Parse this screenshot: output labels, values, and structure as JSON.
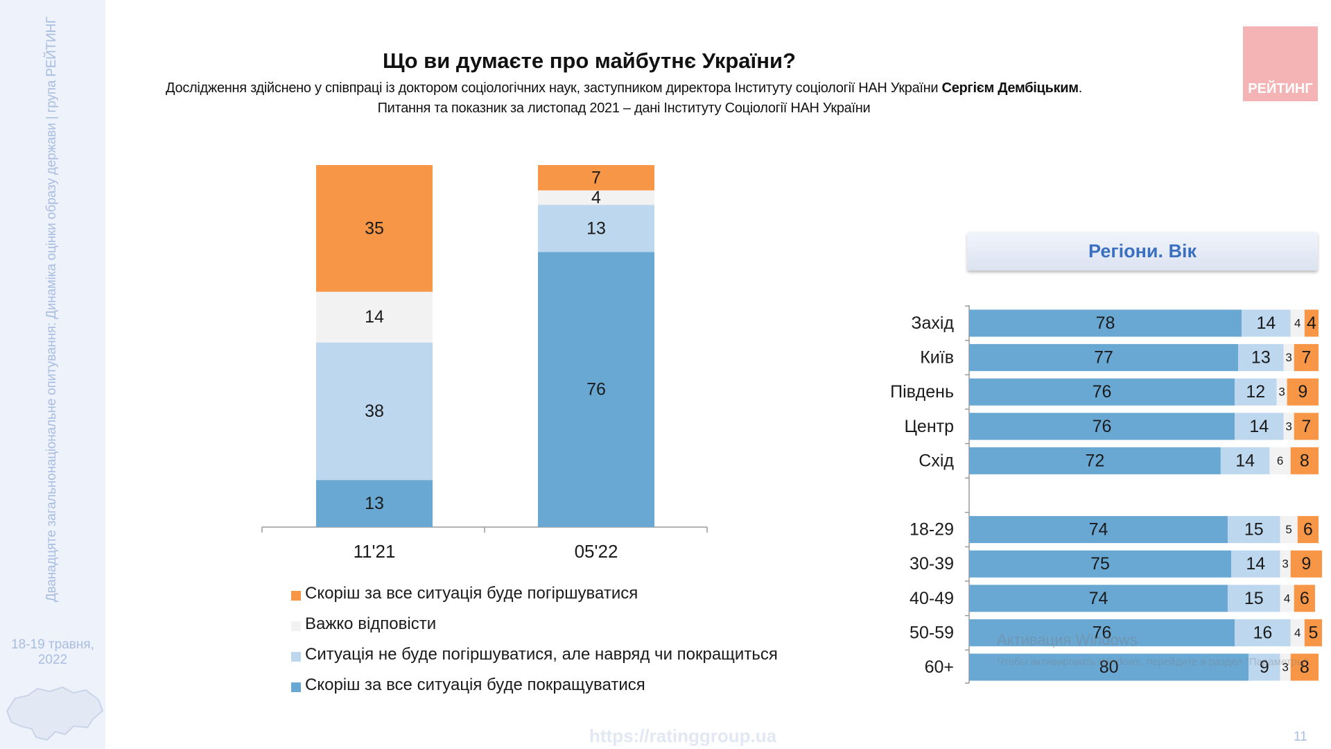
{
  "sidebar": {
    "vertical_text": "Дванадцяте загальнонаціональне опитування: Динаміка оцінки образу держави | група РЕЙТИНГ",
    "date_line1": "18-19 травня,",
    "date_line2": "2022"
  },
  "header": {
    "title": "Що ви думаєте про майбутнє України?",
    "subtitle_line1_prefix": "Дослідження здійснено у співпраці із доктором соціологічних наук, заступником директора Інституту соціології НАН України ",
    "subtitle_line1_bold": "Сергієм Дембіцьким",
    "subtitle_line1_suffix": ".",
    "subtitle_line2": "Питання та показник за листопад 2021 – дані Інституту Соціології НАН України",
    "logo_text": "РЕЙТИНГ"
  },
  "regions_header": "Регіони. Вік",
  "footer": {
    "url": "https://ratinggroup.ua",
    "page_number": "11",
    "watermark_line1": "Активация Windows",
    "watermark_line2": "Чтобы активировать Windows, перейдите в раздел \"Параметры\"."
  },
  "colors": {
    "worse": "#f79646",
    "hard": "#f2f2f2",
    "same": "#bdd7ee",
    "better": "#6aa8d4"
  },
  "legend": [
    {
      "key": "worse",
      "label": "Скоріш за все ситуація буде погіршуватися"
    },
    {
      "key": "hard",
      "label": "Важко відповісти"
    },
    {
      "key": "same",
      "label": "Ситуація не буде погіршуватися, але навряд чи покращиться"
    },
    {
      "key": "better",
      "label": "Скоріш за все ситуація буде покращуватися"
    }
  ],
  "chart_data": [
    {
      "type": "bar",
      "stacked": true,
      "orientation": "vertical",
      "categories": [
        "11'21",
        "05'22"
      ],
      "series": [
        {
          "key": "better",
          "name": "Скоріш за все ситуація буде покращуватися",
          "values": [
            13,
            76
          ]
        },
        {
          "key": "same",
          "name": "Ситуація не буде погіршуватися, але навряд чи покращиться",
          "values": [
            38,
            13
          ]
        },
        {
          "key": "hard",
          "name": "Важко відповісти",
          "values": [
            14,
            4
          ]
        },
        {
          "key": "worse",
          "name": "Скоріш за все ситуація буде погіршуватися",
          "values": [
            35,
            7
          ]
        }
      ],
      "ylim": [
        0,
        100
      ]
    },
    {
      "type": "bar",
      "stacked": true,
      "orientation": "horizontal",
      "categories": [
        "Захід",
        "Київ",
        "Південь",
        "Центр",
        "Схід",
        "",
        "18-29",
        "30-39",
        "40-49",
        "50-59",
        "60+"
      ],
      "series": [
        {
          "key": "better",
          "name": "Скоріш за все ситуація буде покращуватися",
          "values": [
            78,
            77,
            76,
            76,
            72,
            null,
            74,
            75,
            74,
            76,
            80
          ]
        },
        {
          "key": "same",
          "name": "Ситуація не буде погіршуватися, але навряд чи покращиться",
          "values": [
            14,
            13,
            12,
            14,
            14,
            null,
            15,
            14,
            15,
            16,
            9
          ]
        },
        {
          "key": "hard",
          "name": "Важко відповісти",
          "values": [
            4,
            3,
            3,
            3,
            6,
            null,
            5,
            3,
            4,
            4,
            3
          ]
        },
        {
          "key": "worse",
          "name": "Скоріш за все ситуація буде погіршуватися",
          "values": [
            4,
            7,
            9,
            7,
            8,
            null,
            6,
            9,
            6,
            5,
            8
          ]
        }
      ],
      "xlim": [
        0,
        100
      ]
    }
  ]
}
